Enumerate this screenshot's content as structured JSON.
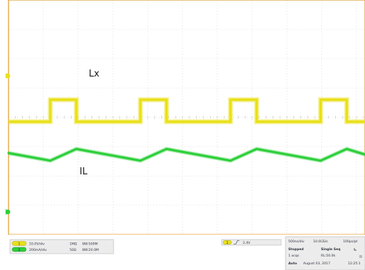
{
  "chart_data": {
    "type": "line",
    "title": "",
    "x_divisions": 10,
    "y_divisions": 8,
    "grid": true,
    "series": [
      {
        "name": "Lx",
        "color": "#e8e01a",
        "low": -0.15,
        "high": 0.6,
        "rising_edges": [
          1.2,
          3.79,
          6.38,
          8.97
        ],
        "falling_edges": [
          1.95,
          4.54,
          7.13,
          9.72
        ],
        "start_level": "low"
      },
      {
        "name": "IL",
        "color": "#2dcf3a",
        "points": [
          [
            0.0,
            -1.22
          ],
          [
            1.2,
            -1.48
          ],
          [
            1.95,
            -1.08
          ],
          [
            3.79,
            -1.48
          ],
          [
            4.54,
            -1.08
          ],
          [
            6.38,
            -1.48
          ],
          [
            7.13,
            -1.08
          ],
          [
            8.97,
            -1.48
          ],
          [
            9.72,
            -1.08
          ],
          [
            10.3,
            -1.29
          ]
        ]
      }
    ],
    "annotations": [
      {
        "text": "Lx",
        "series": "Lx"
      },
      {
        "text": "IL",
        "series": "IL"
      }
    ]
  },
  "status_bar": {
    "channels": [
      {
        "badge": "1",
        "color": "#e8e01a",
        "scale": "10.0V/div",
        "impedance": "1MΩ",
        "bandwidth": "BW:500M"
      },
      {
        "badge": "2",
        "color": "#2dcf3a",
        "scale": "200mA/div",
        "impedance": "50Ω",
        "bandwidth": "BW:20.0M"
      }
    ],
    "trigger": {
      "badge": "1",
      "level": "2.4V"
    },
    "acquisition": {
      "timebase": "500ns/div",
      "sample_rate": "10.0GS/s",
      "resolution": "100ps/pt",
      "state": "Stopped",
      "mode": "Single Seq",
      "acqs": "1 acqs",
      "record_length": "RL:50.0k",
      "trigger_mode": "Auto",
      "date": "August 03, 2017",
      "time": "12:25:1"
    }
  }
}
